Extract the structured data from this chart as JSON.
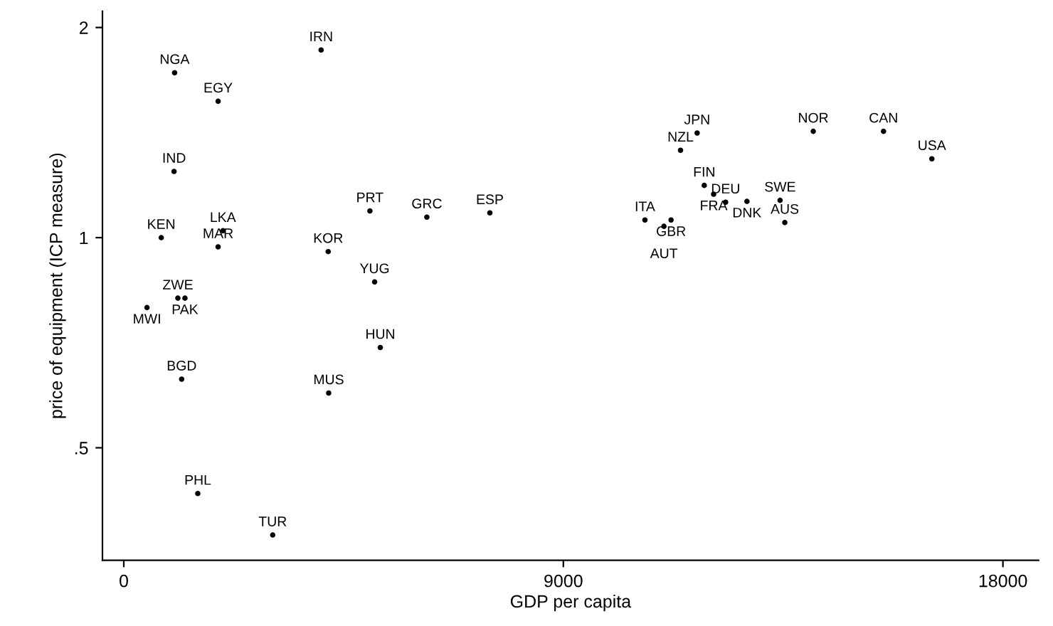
{
  "chart_data": {
    "type": "scatter",
    "xlabel": "GDP per capita",
    "ylabel": "price of equipment (ICP measure)",
    "log": "y",
    "marker": "circle",
    "grid": false,
    "xlim": [
      -437,
      18730
    ],
    "xticks": [
      0,
      9000,
      18000
    ],
    "ylim": [
      0.345,
      2.11
    ],
    "yticks": [
      {
        "value": 0.5,
        "label": ".5"
      },
      1,
      2
    ],
    "series": [
      {
        "color": "#000000",
        "x": [
          4040,
          1040,
          1931,
          1029,
          5039,
          6205,
          7495,
          767,
          2029,
          1931,
          4185,
          5136,
          1107,
          1252,
          475,
          5252,
          1185,
          4195,
          1515,
          3049,
          11739,
          11399,
          14117,
          15555,
          16545,
          11885,
          12077,
          12322,
          12759,
          13437,
          10670,
          11205,
          11059,
          13534
        ],
        "values": [
          1.857,
          1.723,
          1.568,
          1.244,
          1.092,
          1.07,
          1.085,
          1.0,
          1.023,
          0.97,
          0.955,
          0.864,
          0.819,
          0.819,
          0.794,
          0.696,
          0.627,
          0.599,
          0.43,
          0.375,
          1.412,
          1.334,
          1.42,
          1.42,
          1.297,
          1.188,
          1.154,
          1.124,
          1.127,
          1.131,
          1.06,
          1.06,
          1.038,
          1.051
        ],
        "value_labels": [
          "IRN",
          "NGA",
          "EGY",
          "IND",
          "PRT",
          "GRC",
          "ESP",
          "KEN",
          "LKA",
          "MAR",
          "KOR",
          "YUG",
          "ZWE",
          "PAK",
          "MWI",
          "HUN",
          "BGD",
          "MUS",
          "PHL",
          "TUR",
          "JPN",
          "NZL",
          "NOR",
          "CAN",
          "USA",
          "FIN",
          "FRA",
          "DEU",
          "DNK",
          "SWE",
          "ITA",
          "GBR",
          "AUT",
          "AUS"
        ]
      }
    ]
  }
}
